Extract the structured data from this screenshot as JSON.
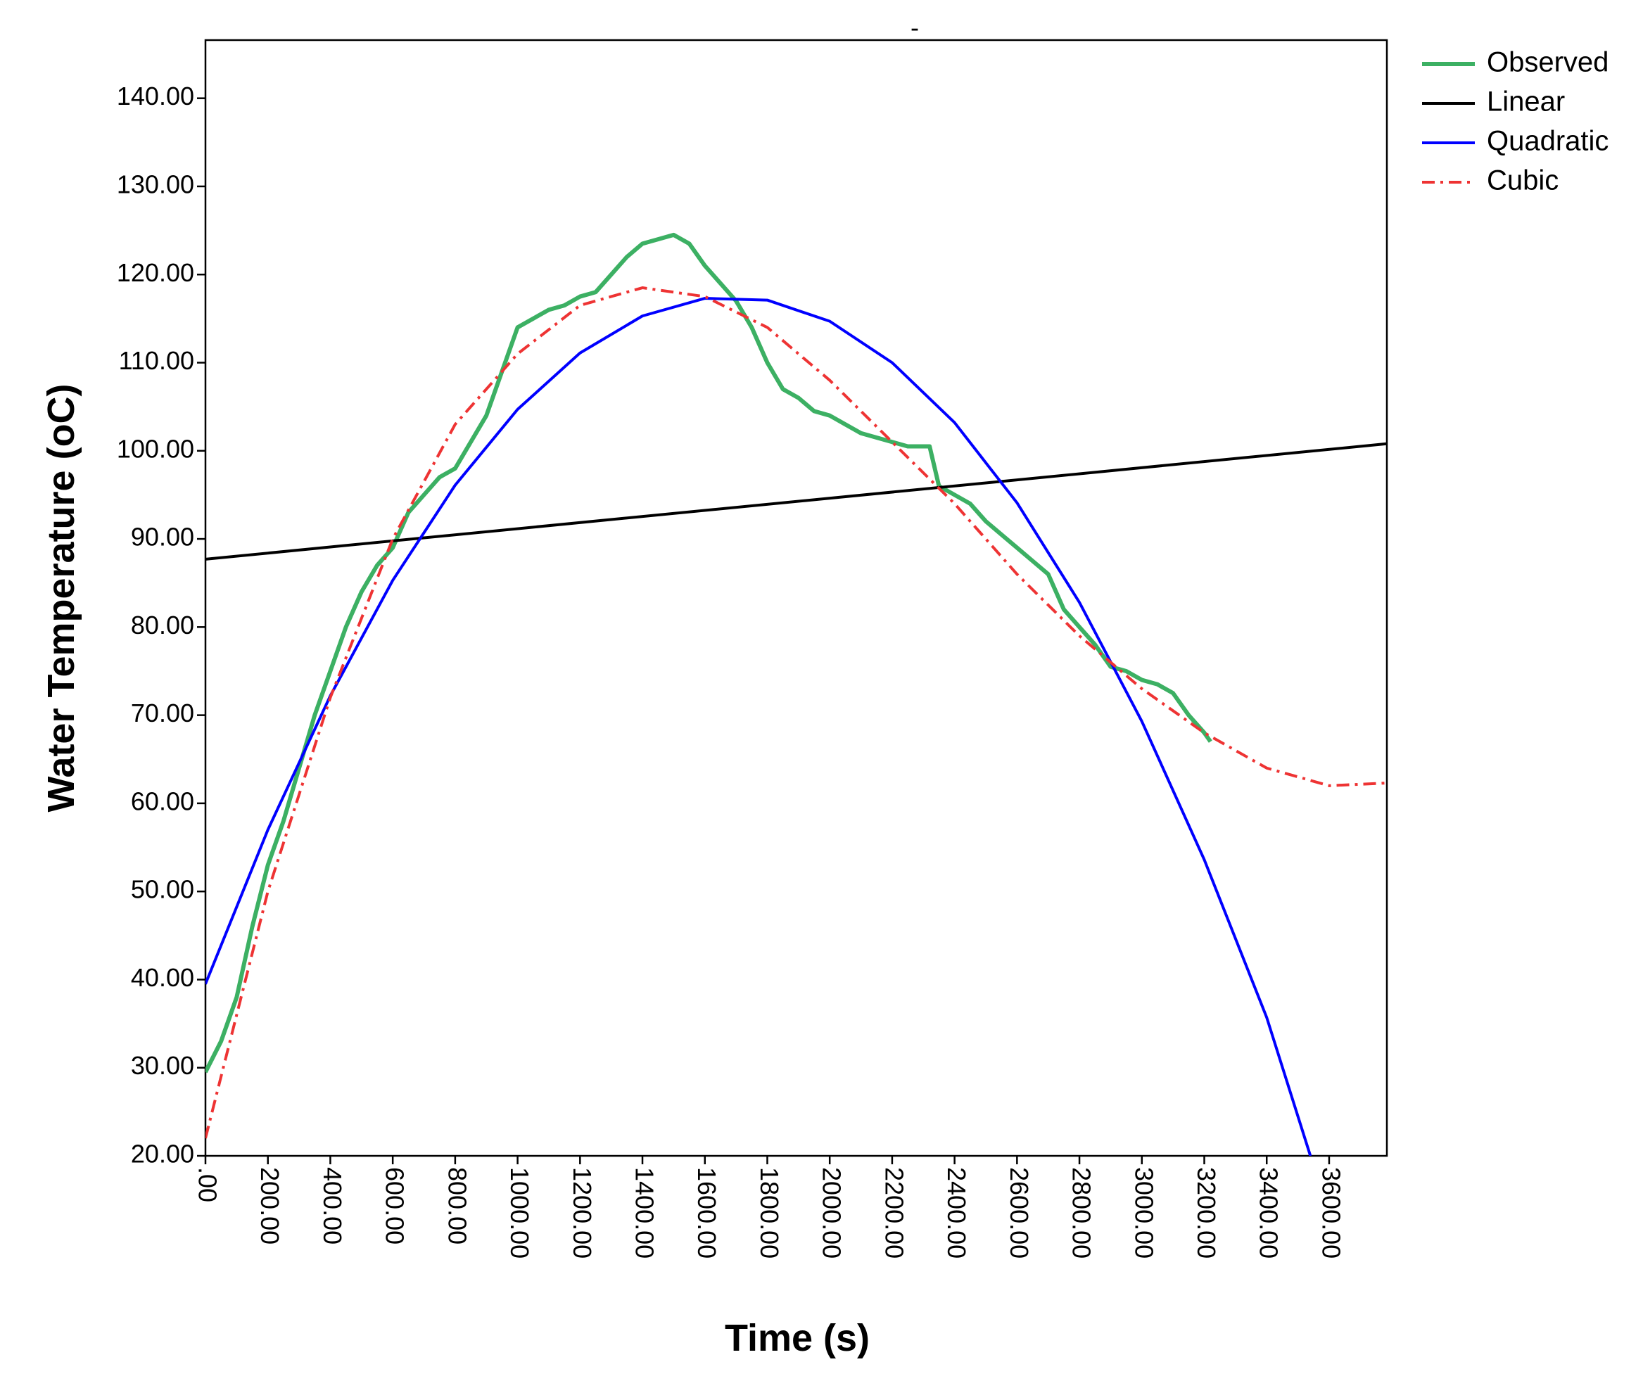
{
  "chart_data": {
    "type": "line",
    "title": "-",
    "xlabel": "Time (s)",
    "ylabel": "Water Temperature (oC)",
    "xlim": [
      0,
      3785
    ],
    "ylim": [
      20,
      146.6
    ],
    "xticks": [
      {
        "value": 0,
        "label": ".00"
      },
      {
        "value": 200,
        "label": "200.00"
      },
      {
        "value": 400,
        "label": "400.00"
      },
      {
        "value": 600,
        "label": "600.00"
      },
      {
        "value": 800,
        "label": "800.00"
      },
      {
        "value": 1000,
        "label": "1000.00"
      },
      {
        "value": 1200,
        "label": "1200.00"
      },
      {
        "value": 1400,
        "label": "1400.00"
      },
      {
        "value": 1600,
        "label": "1600.00"
      },
      {
        "value": 1800,
        "label": "1800.00"
      },
      {
        "value": 2000,
        "label": "2000.00"
      },
      {
        "value": 2200,
        "label": "2200.00"
      },
      {
        "value": 2400,
        "label": "2400.00"
      },
      {
        "value": 2600,
        "label": "2600.00"
      },
      {
        "value": 2800,
        "label": "2800.00"
      },
      {
        "value": 3000,
        "label": "3000.00"
      },
      {
        "value": 3200,
        "label": "3200.00"
      },
      {
        "value": 3400,
        "label": "3400.00"
      },
      {
        "value": 3600,
        "label": "3600.00"
      }
    ],
    "yticks": [
      {
        "value": 20,
        "label": "20.00"
      },
      {
        "value": 30,
        "label": "30.00"
      },
      {
        "value": 40,
        "label": "40.00"
      },
      {
        "value": 50,
        "label": "50.00"
      },
      {
        "value": 60,
        "label": "60.00"
      },
      {
        "value": 70,
        "label": "70.00"
      },
      {
        "value": 80,
        "label": "80.00"
      },
      {
        "value": 90,
        "label": "90.00"
      },
      {
        "value": 100,
        "label": "100.00"
      },
      {
        "value": 110,
        "label": "110.00"
      },
      {
        "value": 120,
        "label": "120.00"
      },
      {
        "value": 130,
        "label": "130.00"
      },
      {
        "value": 140,
        "label": "140.00"
      }
    ],
    "legend": "outside-right-top",
    "series": [
      {
        "name": "Observed",
        "color": "#3cb063",
        "style": "solid",
        "width": 6,
        "x": [
          0,
          50,
          100,
          150,
          200,
          250,
          300,
          350,
          400,
          450,
          500,
          550,
          600,
          650,
          700,
          750,
          800,
          850,
          900,
          950,
          1000,
          1050,
          1100,
          1150,
          1200,
          1250,
          1300,
          1350,
          1400,
          1450,
          1500,
          1550,
          1600,
          1650,
          1700,
          1750,
          1800,
          1850,
          1900,
          1950,
          2000,
          2050,
          2100,
          2150,
          2200,
          2250,
          2320,
          2350,
          2400,
          2450,
          2500,
          2550,
          2600,
          2650,
          2700,
          2750,
          2800,
          2850,
          2900,
          2950,
          3000,
          3050,
          3100,
          3150,
          3200,
          3220
        ],
        "values": [
          29.5,
          33,
          38,
          46,
          53,
          58,
          64,
          70,
          75,
          80,
          84,
          87,
          89,
          93,
          95,
          97,
          98,
          101,
          104,
          109,
          114,
          115,
          116,
          116.5,
          117.5,
          118,
          120,
          122,
          123.5,
          124,
          124.5,
          123.5,
          121,
          119,
          117,
          114,
          110,
          107,
          106,
          104.5,
          104,
          103,
          102,
          101.5,
          101,
          100.5,
          100.5,
          96,
          95,
          94,
          92,
          90.5,
          89,
          87.5,
          86,
          82,
          80,
          78,
          75.5,
          75,
          74,
          73.5,
          72.5,
          70,
          68,
          67
        ]
      },
      {
        "name": "Linear",
        "color": "#000000",
        "style": "solid",
        "width": 4,
        "x": [
          0,
          3785
        ],
        "values": [
          87.7,
          100.8
        ]
      },
      {
        "name": "Quadratic",
        "color": "#0000ff",
        "style": "solid",
        "width": 4,
        "x": [
          0,
          200,
          400,
          600,
          800,
          1000,
          1200,
          1400,
          1600,
          1800,
          2000,
          2200,
          2400,
          2600,
          2800,
          3000,
          3200,
          3400,
          3540
        ],
        "values": [
          39.5,
          57.0,
          72.2,
          85.3,
          96.1,
          104.7,
          111.1,
          115.3,
          117.3,
          117.1,
          114.7,
          110.0,
          103.2,
          94.1,
          82.8,
          69.3,
          53.6,
          35.7,
          20
        ]
      },
      {
        "name": "Cubic",
        "color": "#ee3333",
        "style": "dashdot",
        "width": 4,
        "x": [
          0,
          200,
          400,
          600,
          800,
          1000,
          1200,
          1400,
          1600,
          1800,
          2000,
          2200,
          2400,
          2600,
          2800,
          3000,
          3200,
          3400,
          3600,
          3785
        ],
        "values": [
          22,
          50,
          72,
          90,
          103,
          111,
          116.5,
          118.5,
          117.5,
          114,
          108,
          101,
          94,
          86,
          79,
          73,
          68,
          64,
          62,
          62.3
        ]
      }
    ]
  }
}
